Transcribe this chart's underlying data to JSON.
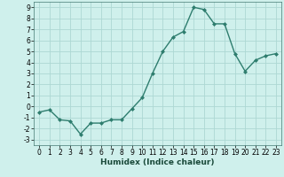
{
  "x": [
    0,
    1,
    2,
    3,
    4,
    5,
    6,
    7,
    8,
    9,
    10,
    11,
    12,
    13,
    14,
    15,
    16,
    17,
    18,
    19,
    20,
    21,
    22,
    23
  ],
  "y": [
    -0.5,
    -0.3,
    -1.2,
    -1.3,
    -2.5,
    -1.5,
    -1.5,
    -1.2,
    -1.2,
    -0.2,
    0.8,
    3.0,
    5.0,
    6.3,
    6.8,
    9.0,
    8.8,
    7.5,
    7.5,
    4.8,
    3.2,
    4.2,
    4.6,
    4.8
  ],
  "line_color": "#2e7d6e",
  "marker": "D",
  "marker_size": 2.0,
  "bg_color": "#cff0ec",
  "grid_color": "#add8d3",
  "xlabel": "Humidex (Indice chaleur)",
  "xlim": [
    -0.5,
    23.5
  ],
  "ylim": [
    -3.5,
    9.5
  ],
  "yticks": [
    -3,
    -2,
    -1,
    0,
    1,
    2,
    3,
    4,
    5,
    6,
    7,
    8,
    9
  ],
  "xticks": [
    0,
    1,
    2,
    3,
    4,
    5,
    6,
    7,
    8,
    9,
    10,
    11,
    12,
    13,
    14,
    15,
    16,
    17,
    18,
    19,
    20,
    21,
    22,
    23
  ],
  "tick_label_fontsize": 5.5,
  "xlabel_fontsize": 6.5,
  "line_width": 1.0
}
